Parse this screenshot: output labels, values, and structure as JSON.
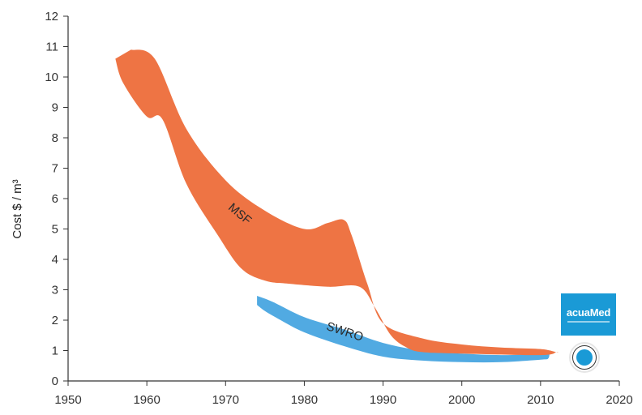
{
  "chart_data": {
    "type": "area",
    "title": "",
    "xlabel": "",
    "ylabel": "Cost $ / m³",
    "xlim": [
      1950,
      2020
    ],
    "ylim": [
      0,
      12
    ],
    "xticks": [
      1950,
      1960,
      1970,
      1980,
      1990,
      2000,
      2010,
      2020
    ],
    "yticks": [
      0,
      1,
      2,
      3,
      4,
      5,
      6,
      7,
      8,
      9,
      10,
      11,
      12
    ],
    "grid": false,
    "series": [
      {
        "name": "MSF",
        "color": "#ee7444",
        "label_position": {
          "x": 1971.5,
          "y": 5.4
        },
        "upper": [
          [
            1958,
            10.9
          ],
          [
            1961,
            10.6
          ],
          [
            1965,
            8.3
          ],
          [
            1970,
            6.6
          ],
          [
            1975,
            5.6
          ],
          [
            1980,
            5.0
          ],
          [
            1983,
            5.2
          ],
          [
            1985,
            5.3
          ],
          [
            1986,
            4.8
          ],
          [
            1988,
            3.2
          ],
          [
            1990,
            1.9
          ],
          [
            1995,
            1.4
          ],
          [
            2000,
            1.2
          ],
          [
            2005,
            1.1
          ],
          [
            2010,
            1.05
          ],
          [
            2012,
            0.95
          ]
        ],
        "lower": [
          [
            2012,
            0.95
          ],
          [
            2010,
            0.85
          ],
          [
            2000,
            0.9
          ],
          [
            1995,
            0.95
          ],
          [
            1993,
            1.1
          ],
          [
            1991,
            1.5
          ],
          [
            1989,
            2.4
          ],
          [
            1987,
            3.1
          ],
          [
            1983,
            3.1
          ],
          [
            1978,
            3.2
          ],
          [
            1975,
            3.3
          ],
          [
            1972,
            3.7
          ],
          [
            1969,
            4.8
          ],
          [
            1965,
            6.5
          ],
          [
            1962,
            8.6
          ],
          [
            1960,
            8.7
          ],
          [
            1957,
            9.8
          ],
          [
            1956,
            10.6
          ]
        ]
      },
      {
        "name": "SWRO",
        "color": "#3ea1df",
        "label_position": {
          "x": 1985,
          "y": 1.5
        },
        "upper": [
          [
            1974,
            2.8
          ],
          [
            1976,
            2.6
          ],
          [
            1980,
            2.1
          ],
          [
            1985,
            1.7
          ],
          [
            1990,
            1.25
          ],
          [
            1995,
            1.0
          ],
          [
            2000,
            0.9
          ],
          [
            2005,
            0.85
          ],
          [
            2010,
            0.9
          ],
          [
            2011,
            1.0
          ]
        ],
        "lower": [
          [
            2011,
            0.75
          ],
          [
            2010,
            0.7
          ],
          [
            2005,
            0.62
          ],
          [
            2000,
            0.62
          ],
          [
            1995,
            0.67
          ],
          [
            1990,
            0.8
          ],
          [
            1985,
            1.15
          ],
          [
            1980,
            1.6
          ],
          [
            1977,
            2.0
          ],
          [
            1975,
            2.3
          ],
          [
            1974,
            2.5
          ]
        ]
      }
    ]
  },
  "logo": {
    "name": "acuaMed",
    "color": "#1a9ad6"
  }
}
